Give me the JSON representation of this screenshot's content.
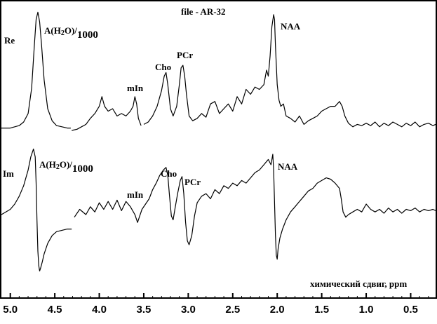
{
  "chart_data": {
    "type": "line",
    "title": "file - AR-32",
    "xlabel": "химический сдвиг, ppm",
    "ylabel": "",
    "xlim": [
      5.1,
      0.22
    ],
    "x_reversed": true,
    "grid": false,
    "ticks": [
      "5.0",
      "4.5",
      "4.0",
      "3.5",
      "3.0",
      "2.5",
      "2.0",
      "1.5",
      "1.0",
      "0.5"
    ],
    "tick_values": [
      5.0,
      4.5,
      4.0,
      3.5,
      3.0,
      2.5,
      2.0,
      1.5,
      1.0,
      0.5
    ],
    "series": [
      {
        "name": "Re",
        "baseline": 0.02,
        "ylim": [
          0,
          1
        ],
        "segments": [
          {
            "x": [
              5.1,
              5.0,
              4.9,
              4.85,
              4.8,
              4.76,
              4.73,
              4.71,
              4.69,
              4.67,
              4.65,
              4.62,
              4.58,
              4.53,
              4.48,
              4.42,
              4.36,
              4.32
            ],
            "y": [
              0.02,
              0.02,
              0.04,
              0.07,
              0.14,
              0.35,
              0.7,
              0.92,
              0.98,
              0.9,
              0.72,
              0.42,
              0.18,
              0.08,
              0.04,
              0.03,
              0.02,
              0.02
            ]
          },
          {
            "x": [
              4.31,
              4.25,
              4.2,
              4.15,
              4.1,
              4.05,
              4.0,
              3.97,
              3.94,
              3.9,
              3.85,
              3.8,
              3.75,
              3.7,
              3.65,
              3.62,
              3.6,
              3.58,
              3.56,
              3.53
            ],
            "y": [
              0.0,
              0.01,
              0.03,
              0.05,
              0.1,
              0.14,
              0.2,
              0.28,
              0.2,
              0.16,
              0.18,
              0.12,
              0.14,
              0.12,
              0.16,
              0.2,
              0.28,
              0.22,
              0.1,
              0.04
            ]
          },
          {
            "x": [
              3.5,
              3.45,
              3.4,
              3.35,
              3.3,
              3.27,
              3.25,
              3.23,
              3.2,
              3.17,
              3.13,
              3.1,
              3.08,
              3.06,
              3.04,
              3.02,
              2.99,
              2.95,
              2.9,
              2.85,
              2.8,
              2.75,
              2.7,
              2.65,
              2.6,
              2.55,
              2.5,
              2.45,
              2.4,
              2.35,
              2.3,
              2.25,
              2.2,
              2.15,
              2.12,
              2.1,
              2.08,
              2.06,
              2.04,
              2.03,
              2.02,
              2.0,
              1.98,
              1.96,
              1.93,
              1.9,
              1.85,
              1.8,
              1.75,
              1.7,
              1.65,
              1.6,
              1.55,
              1.5,
              1.45,
              1.4,
              1.35,
              1.3,
              1.27,
              1.24,
              1.2,
              1.15,
              1.1,
              1.05,
              1.0,
              0.95,
              0.9,
              0.85,
              0.8,
              0.75,
              0.7,
              0.65,
              0.6,
              0.55,
              0.5,
              0.45,
              0.4,
              0.35,
              0.3,
              0.25,
              0.22
            ],
            "y": [
              0.05,
              0.07,
              0.12,
              0.2,
              0.33,
              0.45,
              0.48,
              0.38,
              0.18,
              0.12,
              0.2,
              0.38,
              0.52,
              0.54,
              0.45,
              0.3,
              0.12,
              0.08,
              0.1,
              0.14,
              0.11,
              0.22,
              0.24,
              0.14,
              0.18,
              0.22,
              0.16,
              0.28,
              0.22,
              0.34,
              0.3,
              0.36,
              0.34,
              0.38,
              0.5,
              0.45,
              0.62,
              0.86,
              0.96,
              0.92,
              0.7,
              0.38,
              0.25,
              0.2,
              0.22,
              0.12,
              0.1,
              0.07,
              0.12,
              0.05,
              0.08,
              0.1,
              0.12,
              0.16,
              0.18,
              0.2,
              0.2,
              0.24,
              0.2,
              0.12,
              0.06,
              0.03,
              0.05,
              0.04,
              0.06,
              0.04,
              0.07,
              0.03,
              0.06,
              0.04,
              0.07,
              0.05,
              0.03,
              0.06,
              0.04,
              0.07,
              0.03,
              0.05,
              0.06,
              0.04,
              0.05
            ]
          }
        ]
      },
      {
        "name": "Im",
        "baseline": 0.46,
        "ylim": [
          0,
          1
        ],
        "segments": [
          {
            "x": [
              5.1,
              5.0,
              4.95,
              4.9,
              4.85,
              4.8,
              4.77,
              4.74,
              4.72,
              4.71,
              4.7,
              4.69,
              4.68,
              4.67,
              4.66,
              4.64,
              4.62,
              4.58,
              4.53,
              4.48,
              4.42,
              4.36,
              4.31
            ],
            "y": [
              0.46,
              0.5,
              0.54,
              0.6,
              0.68,
              0.8,
              0.9,
              0.96,
              0.9,
              0.7,
              0.42,
              0.18,
              0.07,
              0.03,
              0.05,
              0.1,
              0.16,
              0.24,
              0.3,
              0.33,
              0.34,
              0.35,
              0.35
            ]
          },
          {
            "x": [
              4.28,
              4.22,
              4.15,
              4.1,
              4.05,
              4.0,
              3.95,
              3.9,
              3.85,
              3.8,
              3.75,
              3.7,
              3.65,
              3.6,
              3.57,
              3.55,
              3.52,
              3.48,
              3.44,
              3.4,
              3.36,
              3.32,
              3.28,
              3.25,
              3.23,
              3.21,
              3.19,
              3.17,
              3.15,
              3.12,
              3.09,
              3.07,
              3.05,
              3.03,
              3.01,
              2.99,
              2.96,
              2.93,
              2.9,
              2.85,
              2.8,
              2.75,
              2.7,
              2.65,
              2.6,
              2.55,
              2.5,
              2.45,
              2.4,
              2.35,
              2.3,
              2.25,
              2.2,
              2.15,
              2.1,
              2.07,
              2.05,
              2.04,
              2.03,
              2.02,
              2.01,
              2.0,
              1.99,
              1.97,
              1.94,
              1.9,
              1.85,
              1.8,
              1.75,
              1.7,
              1.65,
              1.6,
              1.55,
              1.5,
              1.45,
              1.4,
              1.35,
              1.3,
              1.28,
              1.26,
              1.23,
              1.2,
              1.15,
              1.1,
              1.05,
              1.0,
              0.95,
              0.9,
              0.85,
              0.8,
              0.75,
              0.7,
              0.65,
              0.6,
              0.55,
              0.5,
              0.45,
              0.4,
              0.35,
              0.3,
              0.25,
              0.22
            ],
            "y": [
              0.44,
              0.5,
              0.46,
              0.52,
              0.48,
              0.55,
              0.5,
              0.56,
              0.5,
              0.57,
              0.49,
              0.56,
              0.52,
              0.46,
              0.4,
              0.44,
              0.5,
              0.54,
              0.58,
              0.65,
              0.7,
              0.76,
              0.8,
              0.82,
              0.76,
              0.6,
              0.45,
              0.42,
              0.5,
              0.62,
              0.72,
              0.75,
              0.62,
              0.4,
              0.26,
              0.23,
              0.3,
              0.45,
              0.55,
              0.6,
              0.62,
              0.58,
              0.65,
              0.62,
              0.68,
              0.66,
              0.7,
              0.68,
              0.72,
              0.7,
              0.74,
              0.78,
              0.8,
              0.84,
              0.88,
              0.84,
              0.92,
              0.8,
              0.55,
              0.3,
              0.15,
              0.12,
              0.2,
              0.28,
              0.35,
              0.42,
              0.48,
              0.52,
              0.56,
              0.6,
              0.64,
              0.66,
              0.7,
              0.72,
              0.74,
              0.73,
              0.7,
              0.66,
              0.58,
              0.48,
              0.44,
              0.46,
              0.48,
              0.5,
              0.48,
              0.54,
              0.5,
              0.48,
              0.5,
              0.47,
              0.51,
              0.48,
              0.5,
              0.47,
              0.5,
              0.49,
              0.51,
              0.48,
              0.5,
              0.49,
              0.5,
              0.49
            ]
          }
        ]
      }
    ],
    "annotations": [
      {
        "id": "re-water",
        "text": "A(H2O)/1000"
      },
      {
        "id": "re-mIn",
        "text": "mIn"
      },
      {
        "id": "re-Cho",
        "text": "Cho"
      },
      {
        "id": "re-PCr",
        "text": "PCr"
      },
      {
        "id": "re-NAA",
        "text": "NAA"
      },
      {
        "id": "im-water",
        "text": "A(H2O)/1000"
      },
      {
        "id": "im-mIn",
        "text": "mIn"
      },
      {
        "id": "im-Cho",
        "text": "Cho"
      },
      {
        "id": "im-PCr",
        "text": "PCr"
      },
      {
        "id": "im-NAA",
        "text": "NAA"
      }
    ],
    "colors": {
      "line": "#000000",
      "background": "#ffffff",
      "frame": "#000000"
    }
  }
}
